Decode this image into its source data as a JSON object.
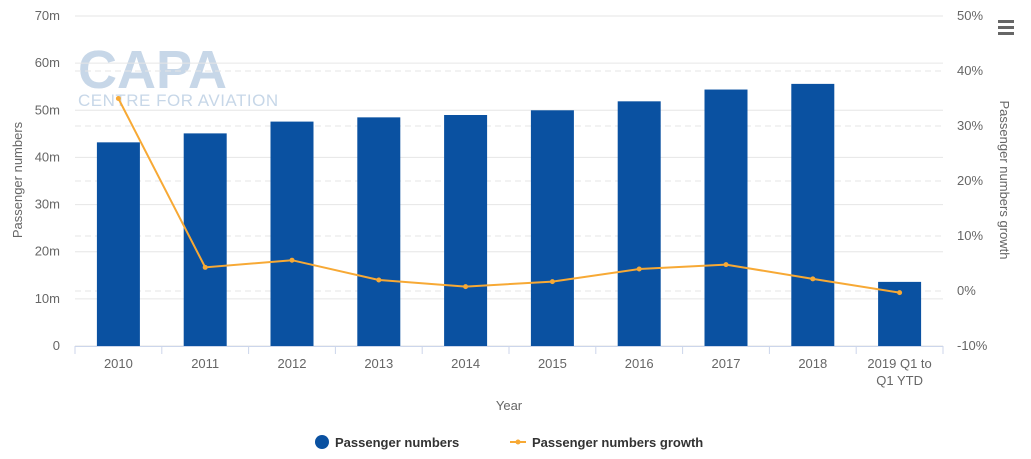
{
  "watermark": {
    "brand": "CAPA",
    "tagline": "CENTRE FOR AVIATION"
  },
  "menu": {
    "icon": "hamburger-menu-icon"
  },
  "colors": {
    "bars": "#0a51a1",
    "line": "#f7a935",
    "grid": "#e6e6e6"
  },
  "chart_data": {
    "type": "bar",
    "categories": [
      "2010",
      "2011",
      "2012",
      "2013",
      "2014",
      "2015",
      "2016",
      "2017",
      "2018",
      "2019 Q1 to Q1 YTD"
    ],
    "category_lines": [
      [
        "2010"
      ],
      [
        "2011"
      ],
      [
        "2012"
      ],
      [
        "2013"
      ],
      [
        "2014"
      ],
      [
        "2015"
      ],
      [
        "2016"
      ],
      [
        "2017"
      ],
      [
        "2018"
      ],
      [
        "2019 Q1 to",
        "Q1 YTD"
      ]
    ],
    "series": [
      {
        "name": "Passenger numbers",
        "type": "bar",
        "axis": "left",
        "values": [
          43.2,
          45.1,
          47.6,
          48.5,
          49.0,
          50.0,
          51.9,
          54.4,
          55.6,
          13.6
        ]
      },
      {
        "name": "Passenger numbers growth",
        "type": "line",
        "axis": "right",
        "values": [
          35.0,
          4.3,
          5.6,
          2.0,
          0.8,
          1.7,
          4.0,
          4.8,
          2.2,
          -0.3
        ]
      }
    ],
    "xlabel": "Year",
    "ylabel": "Passenger numbers",
    "ylabel_right": "Passenger numbers growth",
    "ylim": [
      0,
      70
    ],
    "ylim_right": [
      -10,
      50
    ],
    "yticks": [
      "0",
      "10m",
      "20m",
      "30m",
      "40m",
      "50m",
      "60m",
      "70m"
    ],
    "yticks_right": [
      "-10%",
      "0%",
      "10%",
      "20%",
      "30%",
      "40%",
      "50%"
    ],
    "grid": true,
    "legend_position": "bottom-center"
  }
}
